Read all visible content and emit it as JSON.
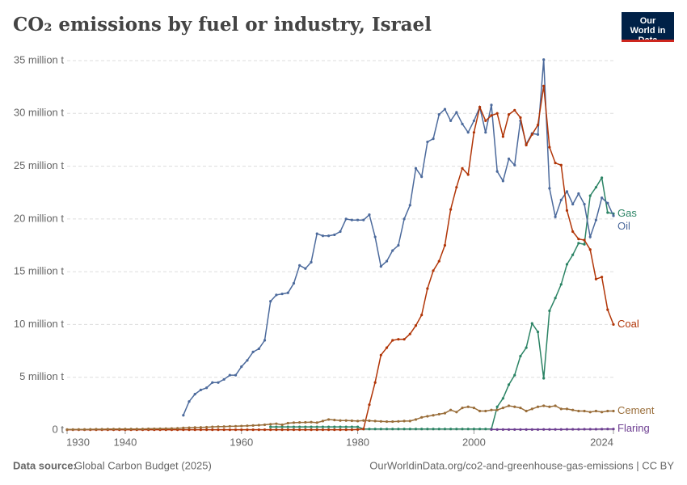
{
  "chart_data": {
    "type": "line",
    "title": "CO₂ emissions by fuel or industry, Israel",
    "logo": "Our World in Data",
    "source_label": "Data source:",
    "source": "Global Carbon Budget (2025)",
    "url": "OurWorldinData.org/co2-and-greenhouse-gas-emissions | CC BY",
    "xlim": [
      1930,
      2024
    ],
    "xticks": [
      1930,
      1940,
      1960,
      1980,
      2000,
      2024
    ],
    "ylim": [
      0,
      35
    ],
    "yticks": [
      {
        "value": 0,
        "label": "0 t"
      },
      {
        "value": 5,
        "label": "5 million t"
      },
      {
        "value": 10,
        "label": "10 million t"
      },
      {
        "value": 15,
        "label": "15 million t"
      },
      {
        "value": 20,
        "label": "20 million t"
      },
      {
        "value": 25,
        "label": "25 million t"
      },
      {
        "value": 30,
        "label": "30 million t"
      },
      {
        "value": 35,
        "label": "35 million t"
      }
    ],
    "grid": true,
    "x": [
      1930,
      1931,
      1932,
      1933,
      1934,
      1935,
      1936,
      1937,
      1938,
      1939,
      1940,
      1941,
      1942,
      1943,
      1944,
      1945,
      1946,
      1947,
      1948,
      1949,
      1950,
      1951,
      1952,
      1953,
      1954,
      1955,
      1956,
      1957,
      1958,
      1959,
      1960,
      1961,
      1962,
      1963,
      1964,
      1965,
      1966,
      1967,
      1968,
      1969,
      1970,
      1971,
      1972,
      1973,
      1974,
      1975,
      1976,
      1977,
      1978,
      1979,
      1980,
      1981,
      1982,
      1983,
      1984,
      1985,
      1986,
      1987,
      1988,
      1989,
      1990,
      1991,
      1992,
      1993,
      1994,
      1995,
      1996,
      1997,
      1998,
      1999,
      2000,
      2001,
      2002,
      2003,
      2004,
      2005,
      2006,
      2007,
      2008,
      2009,
      2010,
      2011,
      2012,
      2013,
      2014,
      2015,
      2016,
      2017,
      2018,
      2019,
      2020,
      2021,
      2022,
      2023,
      2024
    ],
    "series": [
      {
        "name": "Gas",
        "color": "#2c8465",
        "values": [
          null,
          null,
          null,
          null,
          null,
          null,
          null,
          null,
          null,
          null,
          null,
          null,
          null,
          null,
          null,
          null,
          null,
          null,
          null,
          null,
          null,
          null,
          null,
          null,
          null,
          null,
          null,
          null,
          null,
          null,
          null,
          null,
          null,
          null,
          null,
          0.3,
          0.3,
          0.3,
          0.3,
          0.3,
          0.3,
          0.3,
          0.3,
          0.3,
          0.3,
          0.3,
          0.3,
          0.3,
          0.3,
          0.3,
          0.3,
          0.1,
          0.1,
          0.1,
          0.1,
          0.1,
          0.1,
          0.1,
          0.1,
          0.1,
          0.1,
          0.1,
          0.1,
          0.1,
          0.1,
          0.1,
          0.1,
          0.1,
          0.1,
          0.1,
          0.1,
          0.1,
          0.1,
          0.1,
          2.2,
          3.0,
          4.3,
          5.2,
          7.0,
          7.8,
          10.1,
          9.3,
          4.9,
          11.3,
          12.5,
          13.8,
          15.7,
          16.6,
          17.7,
          17.6,
          22.2,
          23.0,
          23.9,
          20.6,
          20.5
        ]
      },
      {
        "name": "Oil",
        "color": "#4c6a9c",
        "values": [
          null,
          null,
          null,
          null,
          null,
          null,
          null,
          null,
          null,
          null,
          null,
          null,
          null,
          null,
          null,
          null,
          null,
          null,
          null,
          null,
          1.4,
          2.7,
          3.4,
          3.8,
          4.0,
          4.5,
          4.5,
          4.8,
          5.2,
          5.2,
          6.0,
          6.6,
          7.4,
          7.7,
          8.5,
          12.2,
          12.8,
          12.9,
          13.0,
          13.9,
          15.6,
          15.3,
          15.9,
          18.6,
          18.4,
          18.4,
          18.5,
          18.8,
          20.0,
          19.9,
          19.9,
          19.9,
          20.4,
          18.3,
          15.5,
          16.0,
          17.0,
          17.5,
          20.0,
          21.3,
          24.8,
          24.0,
          27.3,
          27.6,
          29.9,
          30.4,
          29.3,
          30.1,
          29.0,
          28.2,
          29.3,
          30.6,
          28.2,
          30.8,
          24.5,
          23.6,
          25.7,
          25.1,
          29.3,
          27.1,
          28.1,
          28.0,
          35.1,
          22.9,
          20.2,
          21.8,
          22.6,
          21.4,
          22.4,
          21.4,
          18.3,
          19.9,
          22.0,
          21.5,
          20.3
        ]
      },
      {
        "name": "Coal",
        "color": "#b13507",
        "values": [
          0.03,
          0.03,
          0.03,
          0.03,
          0.03,
          0.03,
          0.03,
          0.03,
          0.03,
          0.03,
          0.03,
          0.03,
          0.03,
          0.03,
          0.03,
          0.03,
          0.03,
          0.03,
          0.03,
          0.03,
          0.03,
          0.03,
          0.03,
          0.03,
          0.03,
          0.03,
          0.03,
          0.03,
          0.03,
          0.03,
          0.03,
          0.03,
          0.03,
          0.03,
          0.03,
          0.03,
          0.03,
          0.03,
          0.03,
          0.03,
          0.03,
          0.03,
          0.03,
          0.03,
          0.03,
          0.03,
          0.03,
          0.03,
          0.03,
          0.03,
          0.05,
          0.1,
          2.4,
          4.5,
          7.1,
          7.8,
          8.5,
          8.6,
          8.6,
          9.1,
          9.9,
          10.9,
          13.4,
          15.1,
          16.0,
          17.5,
          20.9,
          23.0,
          24.8,
          24.2,
          28.2,
          30.6,
          29.3,
          29.8,
          30.0,
          27.8,
          29.9,
          30.3,
          29.6,
          27.0,
          28.0,
          28.9,
          32.6,
          26.8,
          25.3,
          25.1,
          20.8,
          18.8,
          18.1,
          18.0,
          17.1,
          14.3,
          14.5,
          11.4,
          10.0
        ]
      },
      {
        "name": "Cement",
        "color": "#996d39",
        "values": [
          0.05,
          0.05,
          0.06,
          0.06,
          0.07,
          0.08,
          0.08,
          0.09,
          0.09,
          0.1,
          0.1,
          0.1,
          0.1,
          0.1,
          0.12,
          0.12,
          0.13,
          0.14,
          0.15,
          0.16,
          0.2,
          0.22,
          0.24,
          0.25,
          0.27,
          0.3,
          0.32,
          0.33,
          0.35,
          0.36,
          0.38,
          0.4,
          0.43,
          0.46,
          0.5,
          0.55,
          0.6,
          0.5,
          0.65,
          0.7,
          0.72,
          0.73,
          0.75,
          0.7,
          0.85,
          1.0,
          0.95,
          0.9,
          0.9,
          0.88,
          0.85,
          0.9,
          0.88,
          0.85,
          0.82,
          0.8,
          0.8,
          0.82,
          0.85,
          0.85,
          1.0,
          1.2,
          1.3,
          1.4,
          1.5,
          1.6,
          1.9,
          1.7,
          2.1,
          2.2,
          2.1,
          1.8,
          1.8,
          1.9,
          1.9,
          2.1,
          2.3,
          2.2,
          2.1,
          1.8,
          2.0,
          2.2,
          2.3,
          2.2,
          2.3,
          2.0,
          2.0,
          1.9,
          1.8,
          1.8,
          1.7,
          1.8,
          1.7,
          1.8,
          1.8
        ]
      },
      {
        "name": "Flaring",
        "color": "#6d3e91",
        "values": [
          null,
          null,
          null,
          null,
          null,
          null,
          null,
          null,
          null,
          null,
          null,
          null,
          null,
          null,
          null,
          null,
          null,
          null,
          null,
          null,
          null,
          null,
          null,
          null,
          null,
          null,
          null,
          null,
          null,
          null,
          null,
          null,
          null,
          null,
          null,
          null,
          null,
          null,
          null,
          null,
          null,
          null,
          null,
          null,
          null,
          null,
          null,
          null,
          null,
          null,
          null,
          null,
          null,
          null,
          null,
          null,
          null,
          null,
          null,
          null,
          null,
          null,
          null,
          null,
          null,
          null,
          null,
          null,
          null,
          null,
          null,
          null,
          null,
          0.05,
          0.05,
          0.05,
          0.05,
          0.05,
          0.05,
          0.05,
          0.05,
          0.05,
          0.06,
          0.06,
          0.06,
          0.06,
          0.07,
          0.07,
          0.07,
          0.08,
          0.08,
          0.08,
          0.09,
          0.1,
          0.1
        ]
      }
    ]
  }
}
